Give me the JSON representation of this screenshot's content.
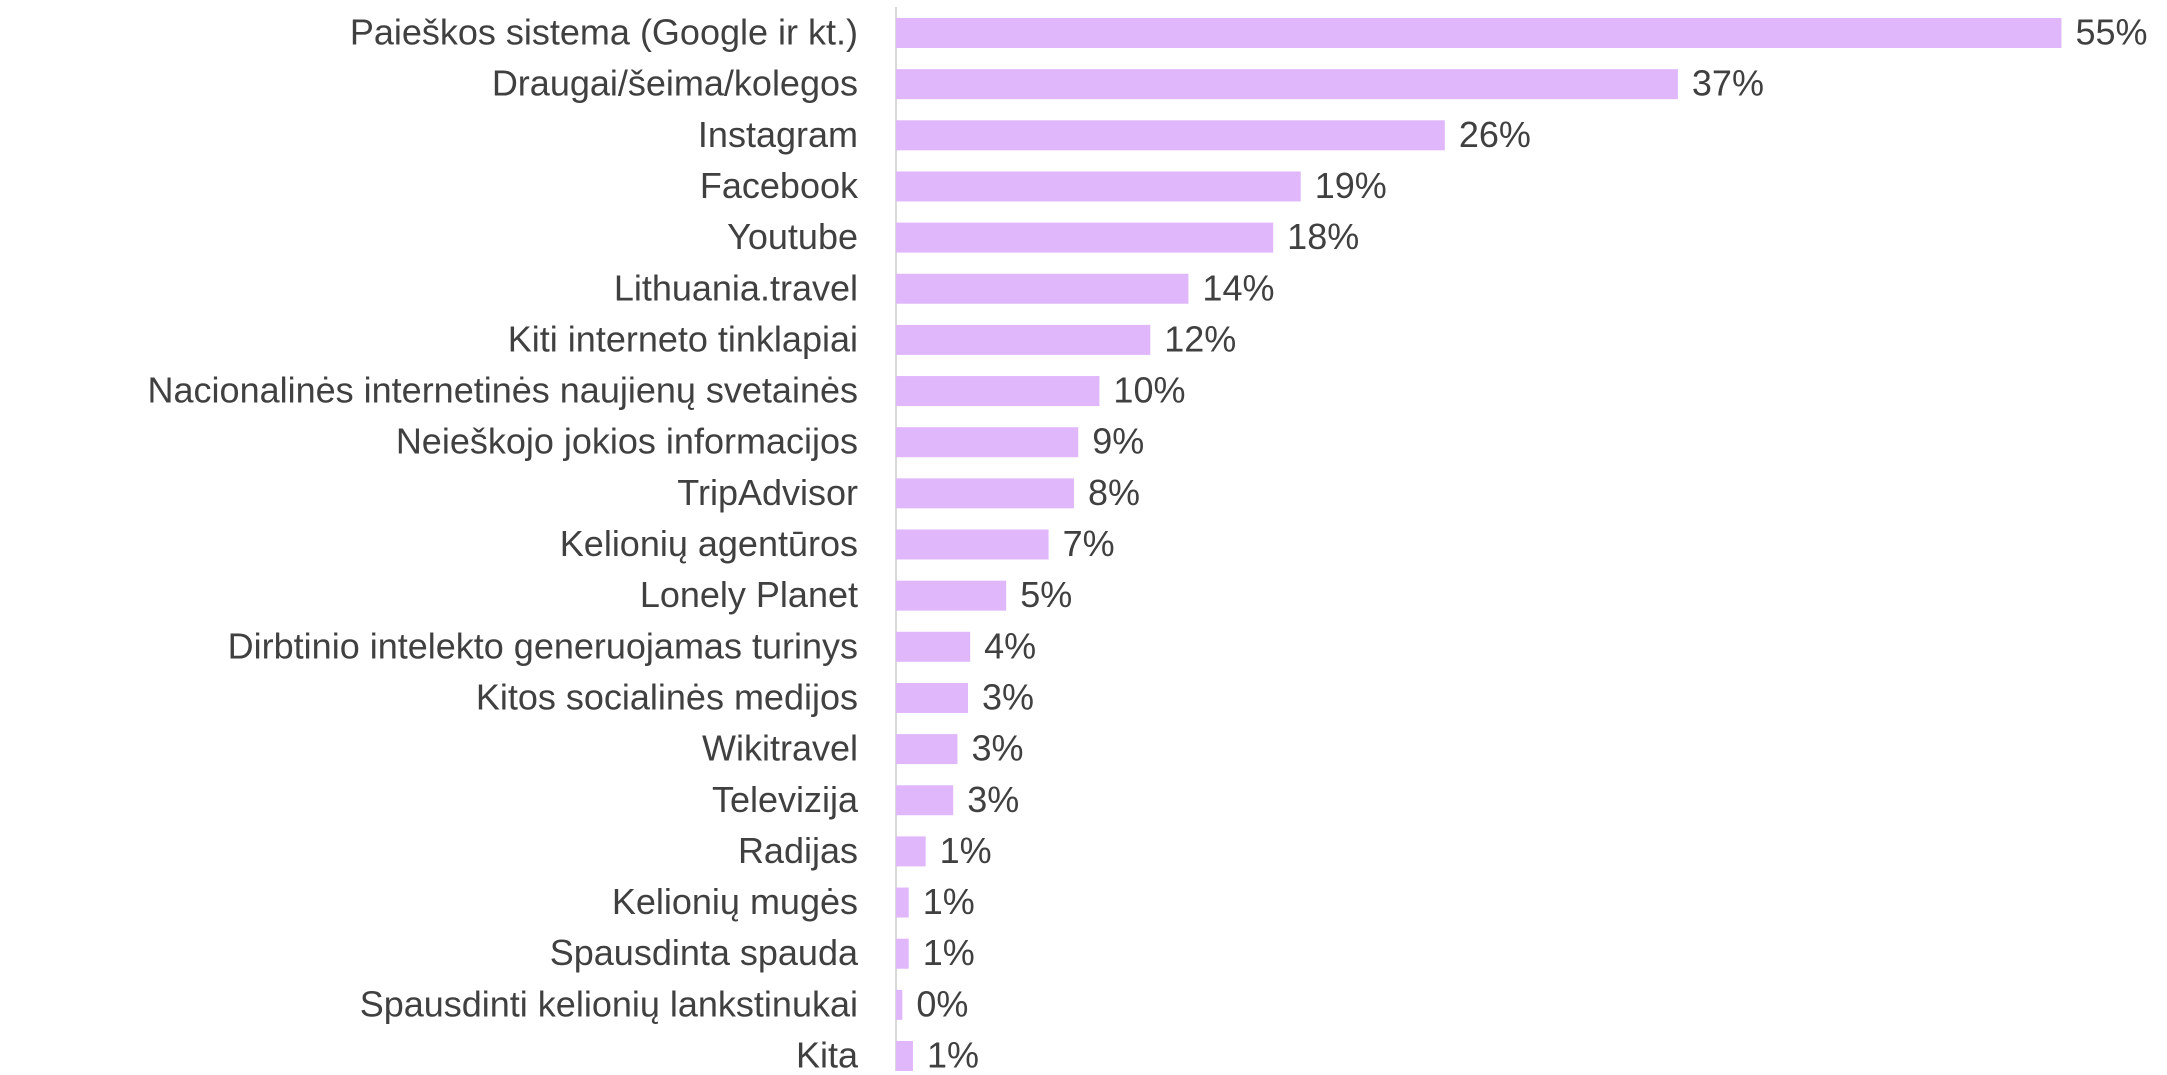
{
  "chart_data": {
    "type": "bar",
    "orientation": "horizontal",
    "categories": [
      "Paieškos sistema (Google ir kt.)",
      "Draugai/šeima/kolegos",
      "Instagram",
      "Facebook",
      "Youtube",
      "Lithuania.travel",
      "Kiti interneto tinklapiai",
      "Nacionalinės internetinės naujienų svetainės",
      "Neieškojo jokios informacijos",
      "TripAdvisor",
      "Kelionių agentūros",
      "Lonely Planet",
      "Dirbtinio intelekto generuojamas turinys",
      "Kitos socialinės medijos",
      "Wikitravel",
      "Televizija",
      "Radijas",
      "Kelionių mugės",
      "Spausdinta spauda",
      "Spausdinti kelionių lankstinukai",
      "Kita"
    ],
    "values": [
      55,
      36.9,
      25.9,
      19.1,
      17.8,
      13.8,
      12.0,
      9.6,
      8.6,
      8.4,
      7.2,
      5.2,
      3.5,
      3.4,
      2.9,
      2.7,
      1.4,
      0.6,
      0.6,
      0.3,
      0.8
    ],
    "value_labels": [
      "55%",
      "37%",
      "26%",
      "19%",
      "18%",
      "14%",
      "12%",
      "10%",
      "9%",
      "8%",
      "7%",
      "5%",
      "4%",
      "3%",
      "3%",
      "3%",
      "1%",
      "1%",
      "1%",
      "0%",
      "1%"
    ],
    "color": "#e0b7fb"
  }
}
